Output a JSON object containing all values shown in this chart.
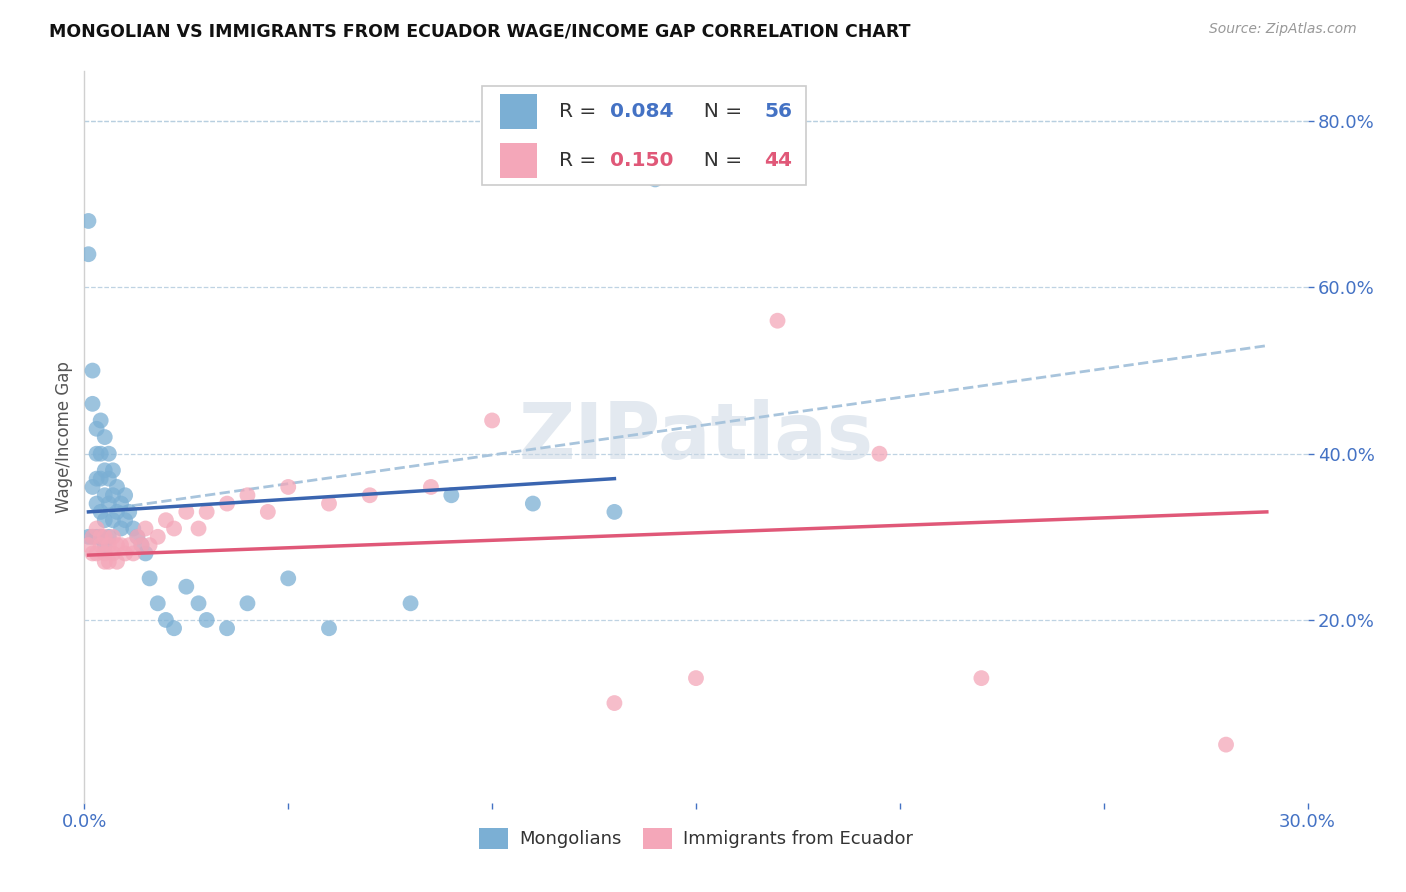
{
  "title": "MONGOLIAN VS IMMIGRANTS FROM ECUADOR WAGE/INCOME GAP CORRELATION CHART",
  "source": "Source: ZipAtlas.com",
  "ylabel": "Wage/Income Gap",
  "xlim": [
    0.0,
    0.3
  ],
  "ylim": [
    -0.02,
    0.86
  ],
  "right_yticks": [
    0.2,
    0.4,
    0.6,
    0.8
  ],
  "right_yticklabels": [
    "20.0%",
    "40.0%",
    "60.0%",
    "80.0%"
  ],
  "xtick_positions": [
    0.0,
    0.05,
    0.1,
    0.15,
    0.2,
    0.25,
    0.3
  ],
  "xtick_labels": [
    "0.0%",
    "",
    "",
    "",
    "",
    "",
    "30.0%"
  ],
  "mongolian_color": "#7bafd4",
  "ecuador_color": "#f4a7b9",
  "mongolian_line_color": "#3a65b0",
  "ecuador_line_color": "#e05878",
  "trend_dash_color": "#a8c4dc",
  "watermark": "ZIPatlas",
  "mong_x": [
    0.001,
    0.001,
    0.001,
    0.002,
    0.002,
    0.002,
    0.002,
    0.003,
    0.003,
    0.003,
    0.003,
    0.003,
    0.004,
    0.004,
    0.004,
    0.004,
    0.004,
    0.005,
    0.005,
    0.005,
    0.005,
    0.005,
    0.006,
    0.006,
    0.006,
    0.006,
    0.007,
    0.007,
    0.007,
    0.008,
    0.008,
    0.009,
    0.009,
    0.01,
    0.01,
    0.011,
    0.012,
    0.013,
    0.014,
    0.015,
    0.016,
    0.018,
    0.02,
    0.022,
    0.025,
    0.028,
    0.03,
    0.035,
    0.04,
    0.05,
    0.06,
    0.08,
    0.09,
    0.11,
    0.13,
    0.14
  ],
  "mong_y": [
    0.68,
    0.64,
    0.3,
    0.5,
    0.46,
    0.36,
    0.3,
    0.43,
    0.4,
    0.37,
    0.34,
    0.3,
    0.44,
    0.4,
    0.37,
    0.33,
    0.3,
    0.42,
    0.38,
    0.35,
    0.32,
    0.29,
    0.4,
    0.37,
    0.34,
    0.3,
    0.38,
    0.35,
    0.32,
    0.36,
    0.33,
    0.34,
    0.31,
    0.35,
    0.32,
    0.33,
    0.31,
    0.3,
    0.29,
    0.28,
    0.25,
    0.22,
    0.2,
    0.19,
    0.24,
    0.22,
    0.2,
    0.19,
    0.22,
    0.25,
    0.19,
    0.22,
    0.35,
    0.34,
    0.33,
    0.73
  ],
  "ecua_x": [
    0.001,
    0.002,
    0.002,
    0.003,
    0.003,
    0.004,
    0.004,
    0.005,
    0.005,
    0.005,
    0.006,
    0.006,
    0.007,
    0.007,
    0.008,
    0.008,
    0.009,
    0.01,
    0.011,
    0.012,
    0.013,
    0.014,
    0.015,
    0.016,
    0.018,
    0.02,
    0.022,
    0.025,
    0.028,
    0.03,
    0.035,
    0.04,
    0.045,
    0.05,
    0.06,
    0.07,
    0.085,
    0.1,
    0.13,
    0.15,
    0.17,
    0.195,
    0.22,
    0.28
  ],
  "ecua_y": [
    0.29,
    0.3,
    0.28,
    0.31,
    0.28,
    0.29,
    0.3,
    0.27,
    0.28,
    0.3,
    0.29,
    0.27,
    0.28,
    0.3,
    0.29,
    0.27,
    0.29,
    0.28,
    0.29,
    0.28,
    0.3,
    0.29,
    0.31,
    0.29,
    0.3,
    0.32,
    0.31,
    0.33,
    0.31,
    0.33,
    0.34,
    0.35,
    0.33,
    0.36,
    0.34,
    0.35,
    0.36,
    0.44,
    0.1,
    0.13,
    0.56,
    0.4,
    0.13,
    0.05
  ],
  "mong_line_x": [
    0.001,
    0.13
  ],
  "mong_line_y": [
    0.33,
    0.37
  ],
  "ecua_line_x": [
    0.001,
    0.29
  ],
  "ecua_line_y": [
    0.278,
    0.33
  ],
  "dash_line_x": [
    0.001,
    0.29
  ],
  "dash_line_y": [
    0.33,
    0.53
  ]
}
